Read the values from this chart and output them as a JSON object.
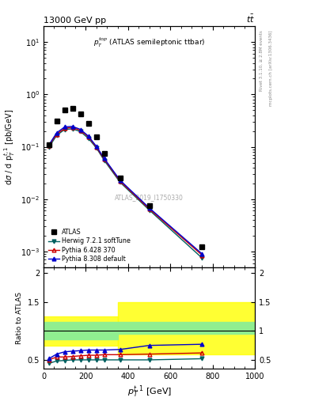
{
  "atlas_x": [
    25,
    62,
    100,
    137,
    175,
    212,
    250,
    287,
    362,
    500,
    750
  ],
  "atlas_y": [
    0.108,
    0.31,
    0.5,
    0.54,
    0.42,
    0.28,
    0.155,
    0.075,
    0.025,
    0.0075,
    0.00125
  ],
  "herwig_x": [
    25,
    62,
    100,
    137,
    175,
    212,
    250,
    287,
    362,
    500,
    750
  ],
  "herwig_y": [
    0.098,
    0.165,
    0.215,
    0.22,
    0.195,
    0.145,
    0.095,
    0.055,
    0.021,
    0.0062,
    0.00075
  ],
  "pythia6_x": [
    25,
    62,
    100,
    137,
    175,
    212,
    250,
    287,
    362,
    500,
    750
  ],
  "pythia6_y": [
    0.105,
    0.175,
    0.225,
    0.235,
    0.205,
    0.155,
    0.098,
    0.058,
    0.022,
    0.0065,
    0.00085
  ],
  "pythia8_x": [
    25,
    62,
    100,
    137,
    175,
    212,
    250,
    287,
    362,
    500,
    750
  ],
  "pythia8_y": [
    0.108,
    0.185,
    0.24,
    0.245,
    0.215,
    0.16,
    0.102,
    0.06,
    0.023,
    0.0068,
    0.0009
  ],
  "ratio_herwig_x": [
    25,
    62,
    100,
    137,
    175,
    212,
    250,
    287,
    362,
    500,
    750
  ],
  "ratio_herwig_y": [
    0.44,
    0.48,
    0.49,
    0.5,
    0.5,
    0.5,
    0.5,
    0.5,
    0.5,
    0.5,
    0.52
  ],
  "ratio_pythia6_x": [
    25,
    62,
    100,
    137,
    175,
    212,
    250,
    287,
    362,
    500,
    750
  ],
  "ratio_pythia6_y": [
    0.5,
    0.55,
    0.55,
    0.56,
    0.57,
    0.58,
    0.58,
    0.59,
    0.59,
    0.6,
    0.62
  ],
  "ratio_pythia8_x": [
    25,
    62,
    100,
    137,
    175,
    212,
    250,
    287,
    362,
    500,
    750
  ],
  "ratio_pythia8_y": [
    0.52,
    0.6,
    0.64,
    0.65,
    0.66,
    0.67,
    0.67,
    0.67,
    0.68,
    0.75,
    0.77
  ],
  "herwig_color": "#006060",
  "pythia6_color": "#cc0000",
  "pythia8_color": "#0000cc",
  "atlas_color": "#000000",
  "ylim_main": [
    0.0005,
    20
  ],
  "xlim": [
    0,
    1000
  ],
  "ratio_ylim": [
    0.35,
    2.1
  ],
  "ratio_yticks": [
    0.5,
    1.0,
    1.5,
    2.0
  ],
  "ratio_yticklabels": [
    "0.5",
    "1",
    "1.5",
    "2"
  ]
}
